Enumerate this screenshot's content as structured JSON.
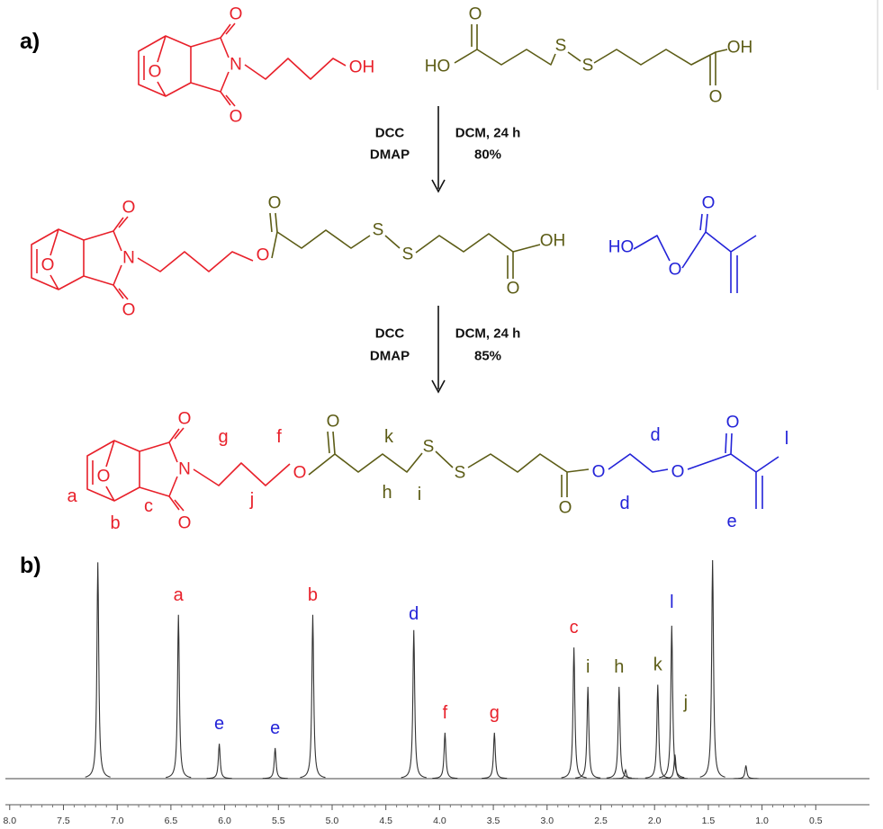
{
  "scheme": {
    "label": "a)",
    "reactant1": [
      "O",
      "O",
      "N",
      "O",
      "OH"
    ],
    "reactant2": [
      "O",
      "HO",
      "S",
      "S",
      "O",
      "OH"
    ],
    "step1": {
      "reagents": [
        "DCC",
        "DMAP"
      ],
      "conditions": "DCM, 24 h",
      "yield": "80%"
    },
    "intermediate": [
      "O",
      "O",
      "N",
      "O",
      "O",
      "O",
      "S",
      "S",
      "O",
      "OH"
    ],
    "reactant3": [
      "HO",
      "O",
      "O"
    ],
    "step2": {
      "reagents": [
        "DCC",
        "DMAP"
      ],
      "conditions": "DCM, 24 h",
      "yield": "85%"
    },
    "product": {
      "atoms": [
        "O",
        "O",
        "N",
        "O",
        "O",
        "O",
        "S",
        "S",
        "O",
        "O",
        "O",
        "O"
      ],
      "assignments": [
        "a",
        "b",
        "c",
        "g",
        "j",
        "f",
        "h",
        "k",
        "i",
        "d",
        "d",
        "e",
        "l"
      ]
    }
  },
  "spectrum": {
    "label": "b)",
    "xlim": [
      8.04,
      0
    ],
    "ylim": [
      0,
      100
    ],
    "xticks": [
      {
        "value": 8,
        "label": "8.0"
      },
      7.5,
      {
        "value": 7,
        "label": "7.0"
      },
      6.5,
      {
        "value": 6,
        "label": "6.0"
      },
      5.5,
      {
        "value": 5,
        "label": "5.0"
      },
      4.5,
      {
        "value": 4,
        "label": "4.0"
      },
      3.5,
      {
        "value": 3,
        "label": "3.0"
      },
      2.5,
      {
        "value": 2,
        "label": "2.0"
      },
      1.5,
      {
        "value": 1,
        "label": "1.0"
      },
      0.5
    ],
    "peaks": [
      {
        "label": "a",
        "ppm": 6.43,
        "intensity": 75,
        "color": "#e8202a"
      },
      {
        "label": "e",
        "ppm": 6.05,
        "intensity": 16,
        "color": "#2323d8"
      },
      {
        "label": "e",
        "ppm": 5.53,
        "intensity": 14,
        "color": "#2323d8"
      },
      {
        "label": "b",
        "ppm": 5.18,
        "intensity": 75,
        "color": "#e8202a"
      },
      {
        "label": "d",
        "ppm": 4.24,
        "intensity": 68,
        "color": "#2323d8"
      },
      {
        "label": "f",
        "ppm": 3.95,
        "intensity": 21,
        "color": "#e8202a"
      },
      {
        "label": "g",
        "ppm": 3.49,
        "intensity": 21,
        "color": "#e8202a"
      },
      {
        "label": "c",
        "ppm": 2.75,
        "intensity": 60,
        "color": "#e8202a"
      },
      {
        "label": "i",
        "ppm": 2.62,
        "intensity": 42,
        "color": "#5c5c16"
      },
      {
        "label": "h",
        "ppm": 2.33,
        "intensity": 42,
        "color": "#5c5c16"
      },
      {
        "label": "k",
        "ppm": 1.97,
        "intensity": 43,
        "color": "#5c5c16"
      },
      {
        "label": "l",
        "ppm": 1.84,
        "intensity": 70,
        "color": "#2323d8"
      },
      {
        "label": "j",
        "ppm": 1.81,
        "intensity": 11,
        "color": "#5c5c16"
      }
    ],
    "other_peaks": [
      {
        "ppm": 7.18,
        "intensity": 99
      },
      {
        "ppm": 2.27,
        "intensity": 4
      },
      {
        "ppm": 1.46,
        "intensity": 100
      },
      {
        "ppm": 1.15,
        "intensity": 6
      }
    ]
  }
}
